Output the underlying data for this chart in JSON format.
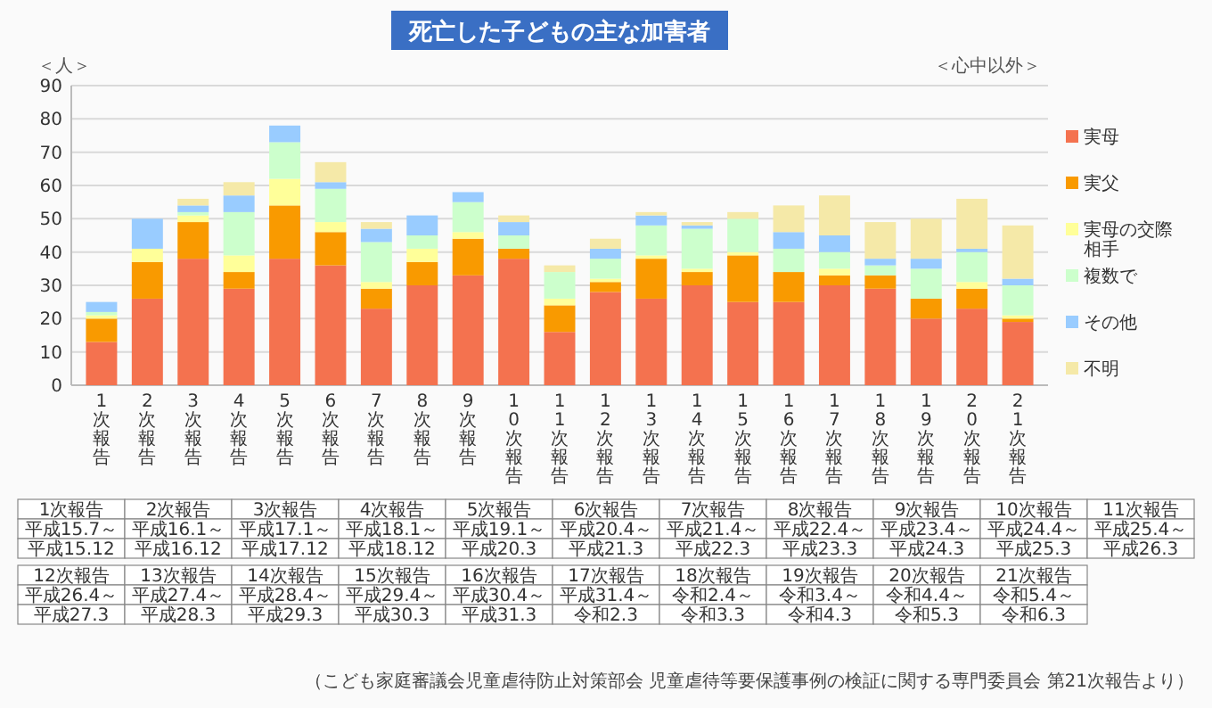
{
  "chart_data": {
    "type": "bar",
    "stacked": true,
    "title": "死亡した子どもの主な加害者",
    "ylabel": "＜人＞",
    "categories": [
      "1次報告",
      "2次報告",
      "3次報告",
      "4次報告",
      "5次報告",
      "6次報告",
      "7次報告",
      "8次報告",
      "9次報告",
      "10次報告",
      "11次報告",
      "12次報告",
      "13次報告",
      "14次報告",
      "15次報告",
      "16次報告",
      "17次報告",
      "18次報告",
      "19次報告",
      "20次報告",
      "21次報告"
    ],
    "series": [
      {
        "name": "実母",
        "color": "#f4724f",
        "values": [
          13,
          26,
          38,
          29,
          38,
          36,
          23,
          30,
          33,
          38,
          16,
          28,
          26,
          30,
          25,
          25,
          30,
          29,
          20,
          23,
          19
        ]
      },
      {
        "name": "実父",
        "color": "#f99a00",
        "values": [
          7,
          11,
          11,
          5,
          16,
          10,
          6,
          7,
          11,
          3,
          8,
          3,
          12,
          4,
          14,
          9,
          3,
          4,
          6,
          6,
          1
        ]
      },
      {
        "name": "実母の交際相手",
        "color": "#ffff99",
        "values": [
          1,
          4,
          2,
          5,
          8,
          3,
          2,
          4,
          2,
          0,
          2,
          1,
          1,
          1,
          1,
          0,
          2,
          0,
          0,
          2,
          1
        ]
      },
      {
        "name": "複数で",
        "color": "#ccffcc",
        "values": [
          1,
          0,
          1,
          13,
          11,
          10,
          12,
          4,
          9,
          4,
          8,
          6,
          9,
          12,
          10,
          7,
          5,
          3,
          9,
          9,
          9
        ]
      },
      {
        "name": "その他",
        "color": "#99ccff",
        "values": [
          3,
          9,
          2,
          5,
          5,
          2,
          4,
          6,
          3,
          4,
          0,
          3,
          3,
          1,
          0,
          5,
          5,
          2,
          3,
          1,
          2
        ]
      },
      {
        "name": "不明",
        "color": "#f5e9a8",
        "values": [
          0,
          0,
          2,
          4,
          0,
          6,
          2,
          0,
          0,
          2,
          2,
          3,
          1,
          1,
          2,
          8,
          12,
          11,
          12,
          15,
          16
        ]
      }
    ],
    "ylim": [
      0,
      90
    ],
    "yticks": [
      0,
      10,
      20,
      30,
      40,
      50,
      60,
      70,
      80,
      90
    ],
    "grid": "y",
    "legend": "right",
    "annotations": [
      "＜心中以外＞",
      "（こども家庭審議会児童虐待防止対策部会 児童虐待等要保護事例の検証に関する専門委員会 第21次報告より）",
      "平成15.7～平成15.12",
      "平成16.1～平成16.12",
      "平成17.1～平成17.12",
      "平成18.1～平成18.12",
      "平成19.1～平成20.3",
      "平成20.4～平成21.3",
      "平成21.4～平成22.3",
      "平成22.4～平成23.3",
      "平成23.4～平成24.3",
      "平成24.4～平成25.3",
      "平成25.4～平成26.3",
      "平成26.4～平成27.3",
      "平成27.4～平成28.3",
      "平成28.4～平成29.3",
      "平成29.4～平成30.3",
      "平成30.4～平成31.3",
      "平成31.4～令和2.3",
      "令和2.4～令和3.3",
      "令和3.4～令和4.3",
      "令和4.4～令和5.3",
      "令和5.4～令和6.3"
    ]
  }
}
